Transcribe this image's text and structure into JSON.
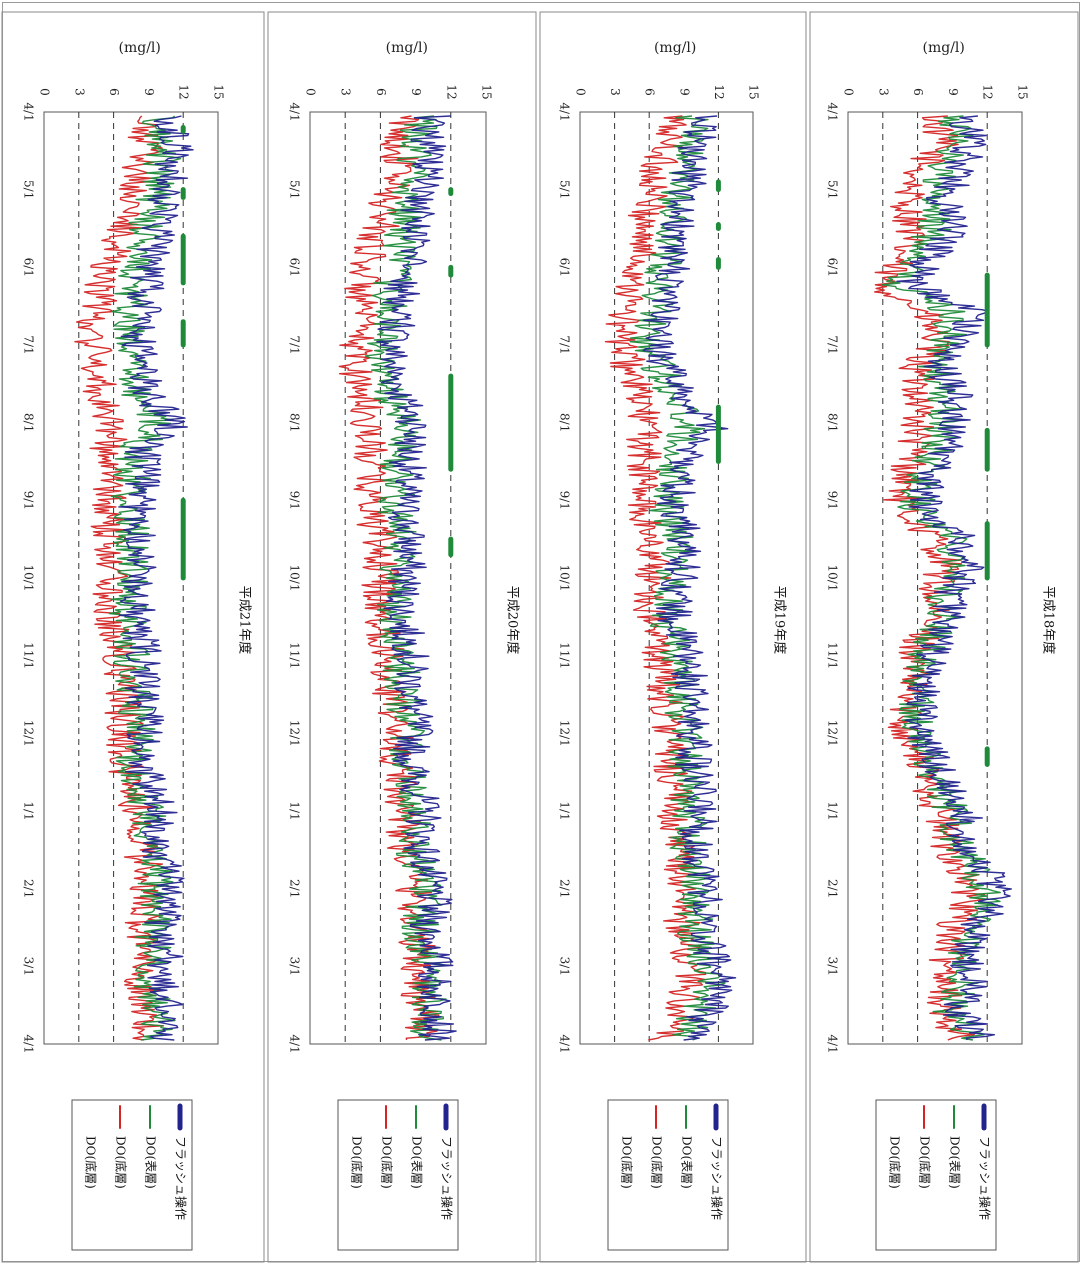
{
  "chart_data": [
    {
      "type": "line",
      "title": "平成18年度",
      "ylabel": "(mg/l)",
      "ylim": [
        0,
        15
      ],
      "y_ticks": [
        "0",
        "3",
        "6",
        "9",
        "12",
        "15"
      ],
      "x_ticks": [
        "4/1",
        "5/1",
        "6/1",
        "7/1",
        "8/1",
        "9/1",
        "10/1",
        "11/1",
        "12/1",
        "1/1",
        "2/1",
        "3/1",
        "4/1"
      ],
      "reference_lines": [
        3,
        6,
        12
      ],
      "legend": [
        "フラッシュ操作",
        "DO(表層)",
        "DO(底層)",
        "DO(底層)"
      ],
      "series": [
        {
          "name": "DO(表層)",
          "color": "#23238f",
          "values": [
            10.2,
            10.5,
            9.6,
            8.1,
            9.0,
            7.2,
            5.5,
            10.8,
            9.4,
            8.0,
            9.5,
            9.0,
            8.2,
            7.0,
            6.5,
            9.8,
            10.5,
            9.0,
            8.8,
            7.3,
            6.8,
            6.4,
            6.2,
            7.4,
            8.7,
            10.0,
            10.2,
            12.0,
            12.8,
            11.0,
            10.0,
            10.5,
            9.5,
            11.8
          ]
        },
        {
          "name": "DO(底層)",
          "color": "#1f8a3a",
          "values": [
            9.0,
            9.4,
            8.0,
            7.0,
            7.4,
            6.3,
            4.2,
            9.0,
            8.5,
            7.3,
            8.2,
            8.2,
            7.4,
            6.3,
            5.8,
            8.9,
            9.7,
            8.3,
            8.1,
            6.9,
            6.2,
            5.9,
            5.8,
            6.9,
            8.0,
            9.1,
            9.4,
            11.0,
            11.8,
            10.2,
            9.5,
            9.8,
            8.9,
            11.0
          ]
        },
        {
          "name": "DO(底層)",
          "color": "#d42424",
          "values": [
            7.5,
            8.0,
            6.0,
            5.0,
            5.6,
            4.5,
            2.8,
            6.5,
            7.5,
            5.8,
            6.3,
            6.0,
            5.7,
            4.9,
            4.6,
            7.2,
            8.4,
            7.3,
            7.0,
            6.0,
            5.4,
            5.1,
            5.0,
            6.0,
            7.1,
            8.0,
            8.5,
            9.8,
            10.4,
            9.1,
            8.5,
            8.8,
            8.0,
            9.8
          ]
        }
      ],
      "flash_periods": [
        [
          2.1,
          3.0
        ],
        [
          4.1,
          4.6
        ],
        [
          5.3,
          6.0
        ],
        [
          8.2,
          8.4
        ]
      ]
    },
    {
      "type": "line",
      "title": "平成19年度",
      "ylabel": "(mg/l)",
      "ylim": [
        0,
        15
      ],
      "y_ticks": [
        "0",
        "3",
        "6",
        "9",
        "12",
        "15"
      ],
      "x_ticks": [
        "4/1",
        "5/1",
        "6/1",
        "7/1",
        "8/1",
        "9/1",
        "10/1",
        "11/1",
        "12/1",
        "1/1",
        "2/1",
        "3/1",
        "4/1"
      ],
      "reference_lines": [
        3,
        6,
        12
      ],
      "legend": [
        "フラッシュ操作",
        "DO(表層)",
        "DO(底層)",
        "DO(底層)"
      ],
      "series": [
        {
          "name": "DO(表層)",
          "color": "#23238f",
          "values": [
            10.5,
            10.2,
            9.6,
            9.0,
            8.4,
            8.0,
            7.8,
            7.0,
            6.5,
            7.5,
            9.0,
            11.8,
            9.2,
            8.6,
            8.2,
            9.2,
            9.0,
            8.5,
            8.0,
            9.2,
            9.5,
            9.5,
            10.0,
            9.8,
            10.2,
            10.5,
            10.0,
            10.8,
            11.0,
            10.5,
            11.5,
            12.5,
            11.0,
            9.8
          ]
        },
        {
          "name": "DO(底層)",
          "color": "#1f8a3a",
          "values": [
            9.6,
            9.4,
            8.5,
            8.2,
            7.7,
            7.3,
            7.1,
            6.3,
            5.9,
            6.8,
            8.2,
            9.5,
            8.4,
            8.0,
            7.6,
            8.5,
            8.2,
            7.9,
            7.5,
            8.4,
            8.8,
            8.8,
            9.3,
            9.1,
            9.4,
            9.6,
            9.3,
            10.0,
            10.2,
            9.8,
            10.6,
            11.3,
            10.2,
            9.0
          ]
        },
        {
          "name": "DO(底層)",
          "color": "#d42424",
          "values": [
            8.0,
            7.6,
            6.5,
            6.0,
            5.6,
            5.2,
            4.8,
            3.8,
            3.5,
            4.3,
            5.0,
            5.8,
            5.5,
            5.5,
            5.3,
            6.0,
            6.4,
            6.2,
            6.0,
            6.8,
            7.1,
            7.4,
            7.8,
            7.9,
            8.1,
            8.3,
            8.3,
            8.8,
            9.0,
            8.8,
            9.2,
            9.6,
            8.6,
            7.2
          ]
        }
      ],
      "flash_periods": [
        [
          0.9,
          1.0
        ],
        [
          1.45,
          1.5
        ],
        [
          1.9,
          2.0
        ],
        [
          3.8,
          4.5
        ]
      ]
    },
    {
      "type": "line",
      "title": "平成20年度",
      "ylabel": "(mg/l)",
      "ylim": [
        0,
        15
      ],
      "y_ticks": [
        "0",
        "3",
        "6",
        "9",
        "12",
        "15"
      ],
      "x_ticks": [
        "4/1",
        "5/1",
        "6/1",
        "7/1",
        "8/1",
        "9/1",
        "10/1",
        "11/1",
        "12/1",
        "1/1",
        "2/1",
        "3/1",
        "4/1"
      ],
      "reference_lines": [
        3,
        6,
        12
      ],
      "legend": [
        "フラッシュ操作",
        "DO(表層)",
        "DO(底層)",
        "DO(底層)"
      ],
      "series": [
        {
          "name": "DO(表層)",
          "color": "#23238f",
          "values": [
            10.5,
            10.0,
            10.0,
            9.2,
            9.0,
            8.5,
            8.0,
            7.5,
            7.2,
            7.0,
            7.8,
            9.0,
            8.5,
            8.2,
            8.0,
            8.4,
            8.4,
            8.0,
            7.8,
            8.6,
            8.5,
            8.8,
            9.0,
            8.5,
            9.2,
            9.8,
            9.5,
            10.0,
            10.5,
            10.0,
            10.8,
            10.5,
            11.0,
            10.8
          ]
        },
        {
          "name": "DO(底層)",
          "color": "#1f8a3a",
          "values": [
            9.4,
            9.0,
            9.0,
            8.2,
            8.0,
            7.5,
            7.0,
            6.6,
            6.2,
            6.0,
            6.8,
            8.0,
            7.6,
            7.4,
            7.2,
            7.6,
            7.6,
            7.3,
            7.1,
            7.8,
            7.8,
            8.1,
            8.3,
            7.9,
            8.5,
            9.0,
            8.8,
            9.3,
            9.8,
            9.3,
            10.0,
            9.8,
            10.2,
            10.0
          ]
        },
        {
          "name": "DO(底層)",
          "color": "#d42424",
          "values": [
            8.0,
            7.6,
            7.6,
            6.4,
            6.0,
            5.0,
            4.5,
            4.2,
            4.0,
            4.0,
            4.5,
            5.0,
            5.0,
            5.3,
            5.2,
            5.8,
            6.0,
            6.0,
            6.0,
            6.6,
            6.8,
            7.0,
            7.4,
            7.2,
            7.8,
            8.2,
            8.0,
            8.6,
            9.0,
            8.8,
            9.3,
            9.2,
            9.5,
            9.4
          ]
        }
      ],
      "flash_periods": [
        [
          1.0,
          1.05
        ],
        [
          2.0,
          2.1
        ],
        [
          3.4,
          4.6
        ],
        [
          5.5,
          5.7
        ]
      ]
    },
    {
      "type": "line",
      "title": "平成21年度",
      "ylabel": "(mg/l)",
      "ylim": [
        0,
        15
      ],
      "y_ticks": [
        "0",
        "3",
        "6",
        "9",
        "12",
        "15"
      ],
      "x_ticks": [
        "4/1",
        "5/1",
        "6/1",
        "7/1",
        "8/1",
        "9/1",
        "10/1",
        "11/1",
        "12/1",
        "1/1",
        "2/1",
        "3/1",
        "4/1"
      ],
      "reference_lines": [
        3,
        6,
        12
      ],
      "legend": [
        "フラッシュ操作",
        "DO(表層)",
        "DO(底層)",
        "DO(底層)"
      ],
      "series": [
        {
          "name": "DO(表層)",
          "color": "#23238f",
          "values": [
            10.8,
            11.5,
            11.0,
            10.5,
            10.0,
            9.5,
            8.8,
            8.5,
            8.0,
            8.5,
            9.0,
            11.5,
            8.5,
            8.5,
            8.0,
            8.5,
            8.4,
            8.0,
            8.0,
            8.5,
            8.5,
            8.6,
            8.8,
            8.2,
            9.2,
            10.0,
            9.8,
            10.5,
            10.5,
            10.2,
            10.5,
            10.0,
            10.8,
            10.5
          ]
        },
        {
          "name": "DO(底層)",
          "color": "#1f8a3a",
          "values": [
            9.8,
            10.4,
            10.0,
            9.4,
            8.8,
            8.3,
            7.6,
            7.3,
            7.0,
            7.4,
            8.0,
            10.0,
            7.6,
            7.6,
            7.2,
            7.6,
            7.6,
            7.2,
            7.2,
            7.6,
            7.6,
            7.8,
            8.0,
            7.5,
            8.4,
            9.2,
            9.0,
            9.6,
            9.6,
            9.3,
            9.6,
            9.2,
            9.8,
            9.5
          ]
        },
        {
          "name": "DO(底層)",
          "color": "#d42424",
          "values": [
            8.0,
            8.8,
            8.2,
            7.5,
            6.8,
            6.0,
            5.0,
            4.5,
            4.2,
            4.5,
            5.0,
            6.0,
            5.4,
            5.6,
            5.4,
            5.8,
            6.0,
            5.8,
            5.8,
            6.4,
            6.6,
            6.8,
            7.0,
            6.8,
            7.5,
            8.2,
            8.2,
            8.8,
            8.8,
            8.4,
            8.7,
            8.4,
            8.9,
            8.6
          ]
        }
      ],
      "flash_periods": [
        [
          0.2,
          0.25
        ],
        [
          1.0,
          1.1
        ],
        [
          1.6,
          2.2
        ],
        [
          2.7,
          3.0
        ],
        [
          5.0,
          6.0
        ]
      ]
    }
  ]
}
